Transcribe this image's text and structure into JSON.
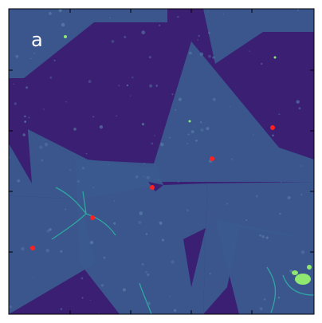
{
  "figure": {
    "panel_label": "a",
    "colors": {
      "background_field": "#3b1f73",
      "flake_region": "#3a5a8e",
      "speckle": "#5a7fa8",
      "edge_line": "#2fa6a0",
      "bright_spot": "#8fe870",
      "marker": "#ff2020",
      "axes": "#000000",
      "label": "#ffffff"
    },
    "markers_count": 6
  }
}
